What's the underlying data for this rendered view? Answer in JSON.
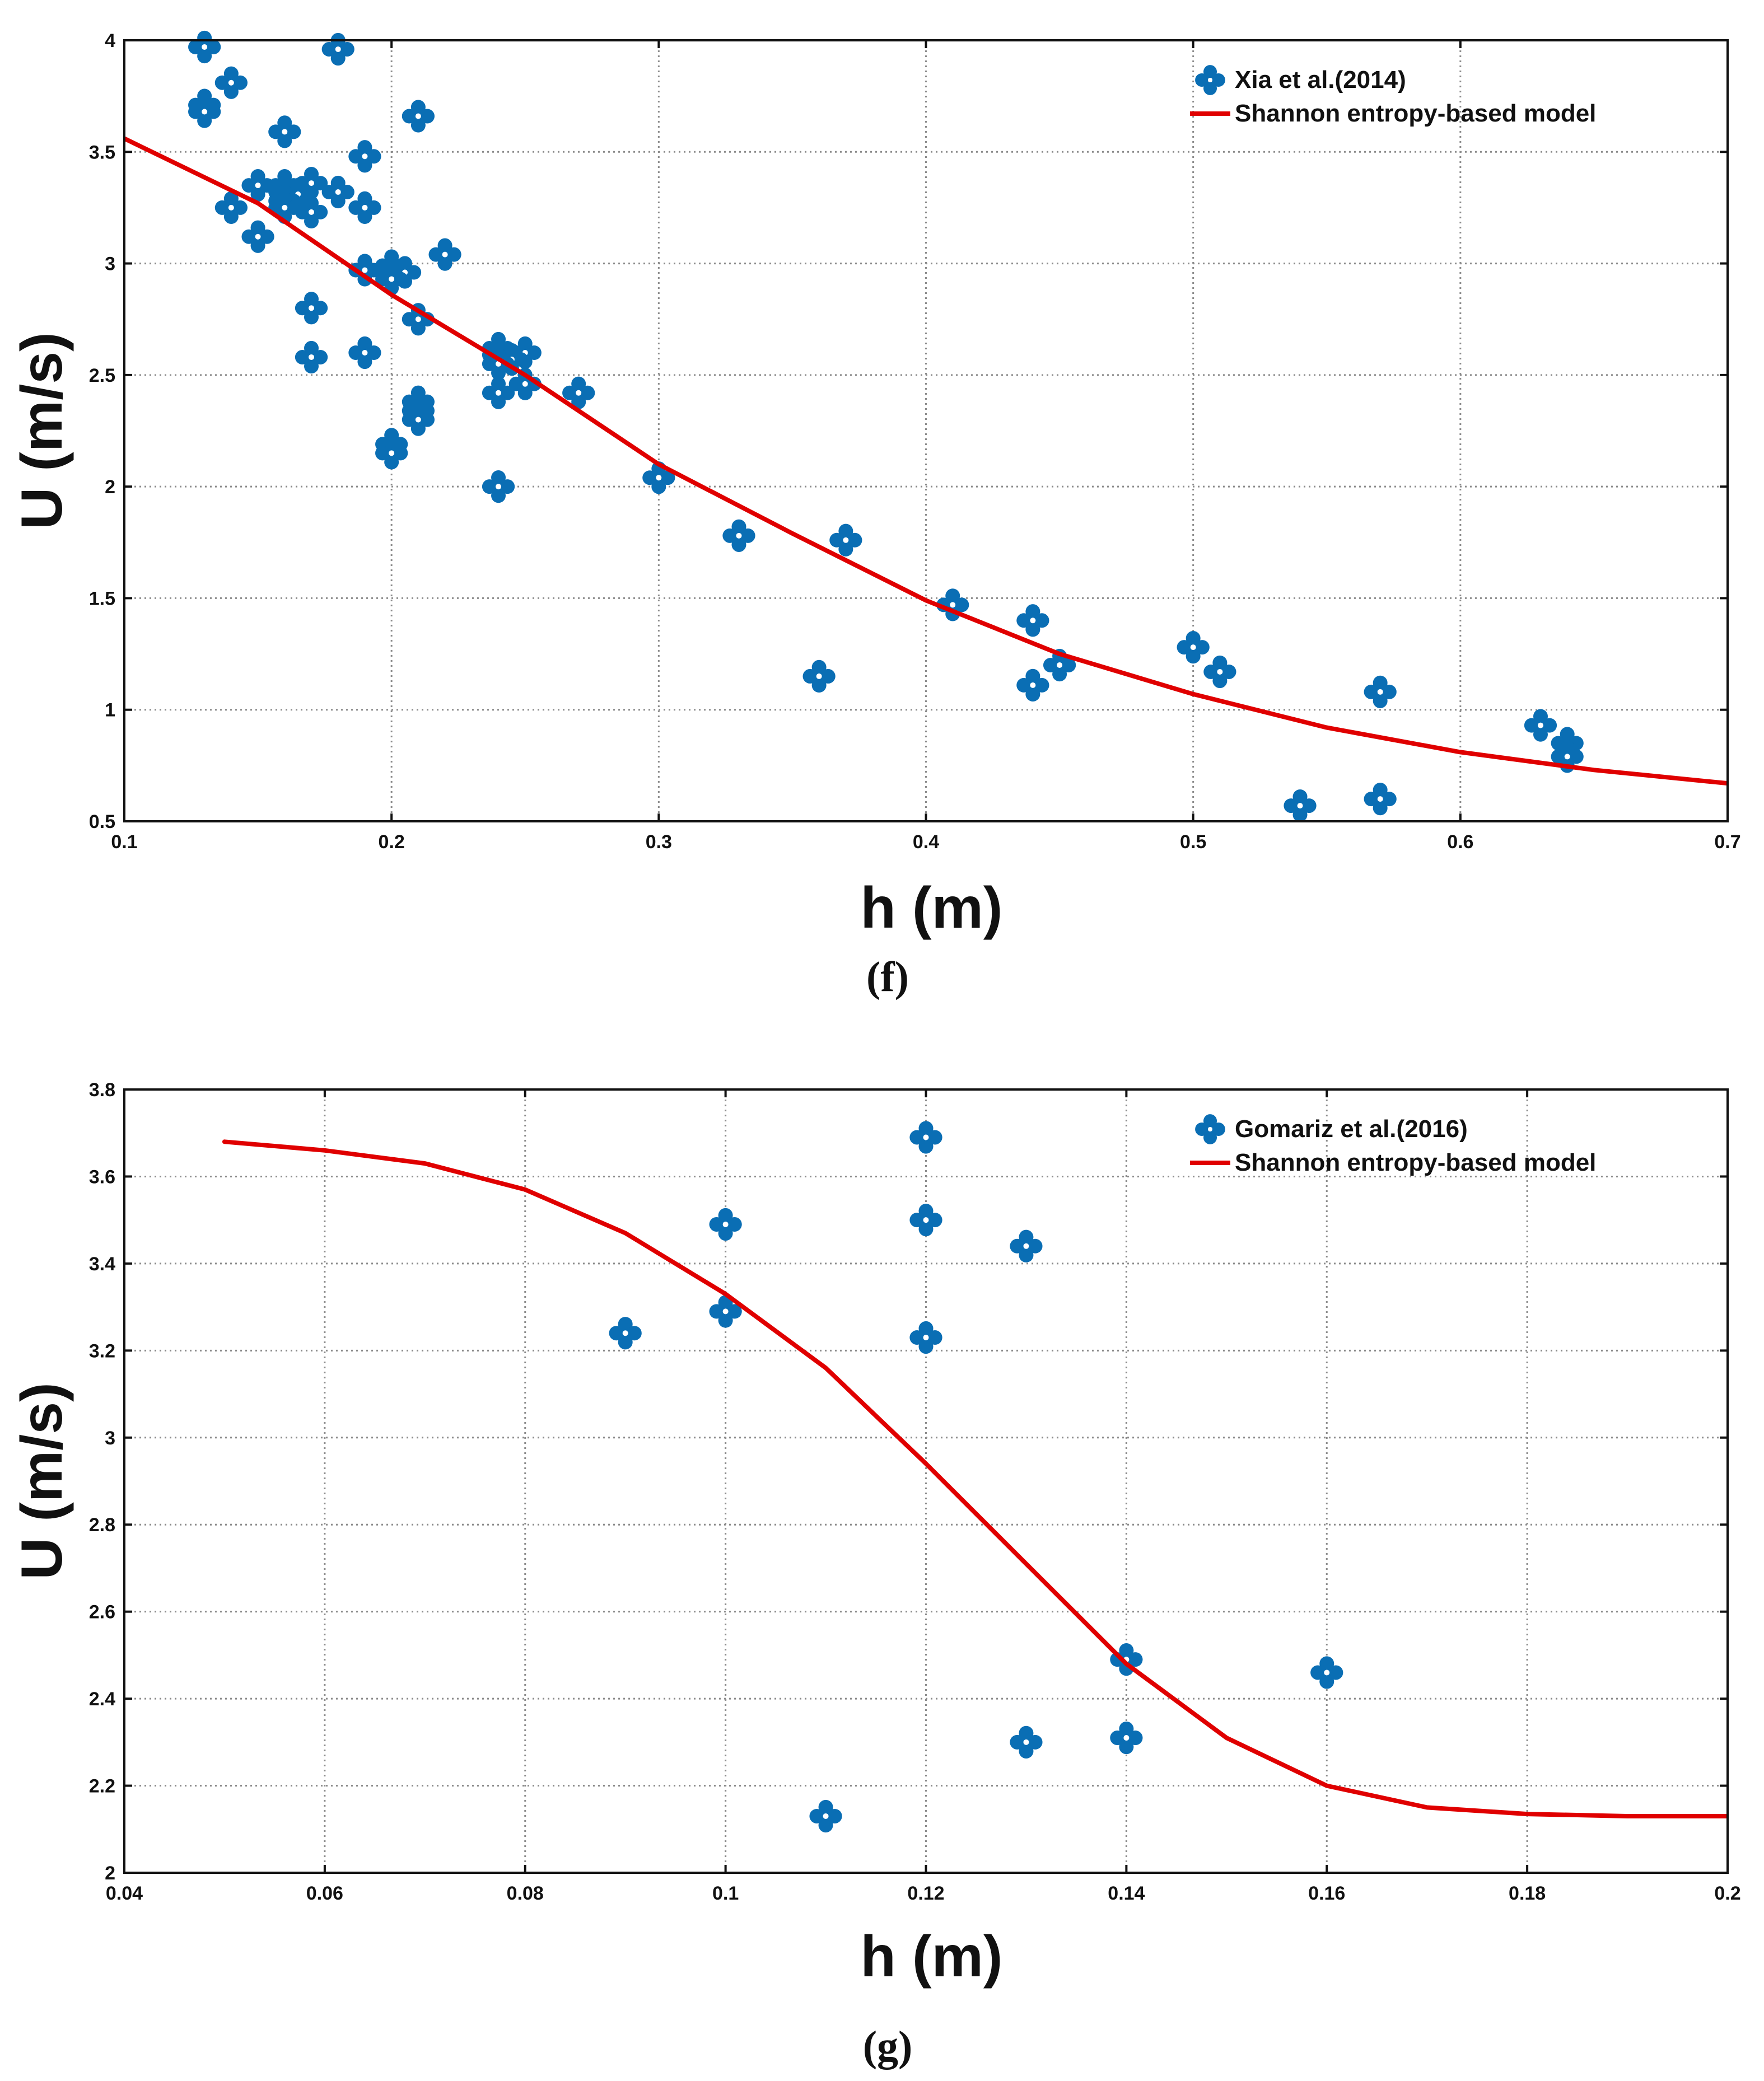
{
  "chart_data": [
    {
      "type": "scatter",
      "panel_label": "(f)",
      "xlabel": "h (m)",
      "ylabel": "U (m/s)",
      "xlim": [
        0.1,
        0.7
      ],
      "ylim": [
        0.5,
        4
      ],
      "xticks": [
        "0.1",
        "0.2",
        "0.3",
        "0.4",
        "0.5",
        "0.6",
        "0.7"
      ],
      "yticks": [
        "0.5",
        "1",
        "1.5",
        "2",
        "2.5",
        "3",
        "3.5",
        "4"
      ],
      "grid": true,
      "legend_position": "top-right",
      "series": [
        {
          "name": "Xia et al.(2014)",
          "kind": "scatter",
          "color": "#0a6eb4",
          "points": [
            [
              0.13,
              3.97
            ],
            [
              0.18,
              3.96
            ],
            [
              0.14,
              3.81
            ],
            [
              0.13,
              3.71
            ],
            [
              0.13,
              3.68
            ],
            [
              0.21,
              3.66
            ],
            [
              0.16,
              3.59
            ],
            [
              0.19,
              3.48
            ],
            [
              0.15,
              3.35
            ],
            [
              0.16,
              3.35
            ],
            [
              0.17,
              3.36
            ],
            [
              0.16,
              3.32
            ],
            [
              0.165,
              3.31
            ],
            [
              0.18,
              3.32
            ],
            [
              0.16,
              3.28
            ],
            [
              0.14,
              3.25
            ],
            [
              0.16,
              3.25
            ],
            [
              0.17,
              3.23
            ],
            [
              0.19,
              3.25
            ],
            [
              0.15,
              3.12
            ],
            [
              0.22,
              3.04
            ],
            [
              0.2,
              2.99
            ],
            [
              0.19,
              2.97
            ],
            [
              0.205,
              2.96
            ],
            [
              0.2,
              2.93
            ],
            [
              0.17,
              2.8
            ],
            [
              0.21,
              2.75
            ],
            [
              0.24,
              2.62
            ],
            [
              0.19,
              2.6
            ],
            [
              0.24,
              2.59
            ],
            [
              0.25,
              2.6
            ],
            [
              0.17,
              2.58
            ],
            [
              0.245,
              2.57
            ],
            [
              0.24,
              2.55
            ],
            [
              0.25,
              2.46
            ],
            [
              0.24,
              2.42
            ],
            [
              0.27,
              2.42
            ],
            [
              0.21,
              2.38
            ],
            [
              0.21,
              2.34
            ],
            [
              0.21,
              2.3
            ],
            [
              0.2,
              2.19
            ],
            [
              0.2,
              2.15
            ],
            [
              0.3,
              2.04
            ],
            [
              0.24,
              2.0
            ],
            [
              0.33,
              1.78
            ],
            [
              0.37,
              1.76
            ],
            [
              0.41,
              1.47
            ],
            [
              0.44,
              1.4
            ],
            [
              0.5,
              1.28
            ],
            [
              0.45,
              1.2
            ],
            [
              0.51,
              1.17
            ],
            [
              0.36,
              1.15
            ],
            [
              0.44,
              1.11
            ],
            [
              0.57,
              1.08
            ],
            [
              0.63,
              0.93
            ],
            [
              0.64,
              0.85
            ],
            [
              0.64,
              0.79
            ],
            [
              0.57,
              0.6
            ],
            [
              0.54,
              0.57
            ]
          ]
        },
        {
          "name": "Shannon entropy-based model",
          "kind": "line",
          "color": "#e00000",
          "points": [
            [
              0.1,
              3.56
            ],
            [
              0.15,
              3.27
            ],
            [
              0.2,
              2.86
            ],
            [
              0.25,
              2.5
            ],
            [
              0.3,
              2.1
            ],
            [
              0.35,
              1.79
            ],
            [
              0.4,
              1.49
            ],
            [
              0.45,
              1.25
            ],
            [
              0.5,
              1.07
            ],
            [
              0.55,
              0.92
            ],
            [
              0.6,
              0.81
            ],
            [
              0.65,
              0.73
            ],
            [
              0.7,
              0.67
            ]
          ]
        }
      ]
    },
    {
      "type": "scatter",
      "panel_label": "(g)",
      "xlabel": "h (m)",
      "ylabel": "U (m/s)",
      "xlim": [
        0.04,
        0.2
      ],
      "ylim": [
        2,
        3.8
      ],
      "xticks": [
        "0.04",
        "0.06",
        "0.08",
        "0.1",
        "0.12",
        "0.14",
        "0.16",
        "0.18",
        "0.2"
      ],
      "yticks": [
        "2",
        "2.2",
        "2.4",
        "2.6",
        "2.8",
        "3",
        "3.2",
        "3.4",
        "3.6",
        "3.8"
      ],
      "grid": true,
      "legend_position": "top-right",
      "series": [
        {
          "name": "Gomariz et al.(2016)",
          "kind": "scatter",
          "color": "#0a6eb4",
          "points": [
            [
              0.12,
              3.69
            ],
            [
              0.1,
              3.49
            ],
            [
              0.12,
              3.5
            ],
            [
              0.13,
              3.44
            ],
            [
              0.1,
              3.29
            ],
            [
              0.09,
              3.24
            ],
            [
              0.12,
              3.23
            ],
            [
              0.14,
              2.49
            ],
            [
              0.16,
              2.46
            ],
            [
              0.14,
              2.31
            ],
            [
              0.13,
              2.3
            ],
            [
              0.11,
              2.13
            ]
          ]
        },
        {
          "name": "Shannon entropy-based model",
          "kind": "line",
          "color": "#e00000",
          "points": [
            [
              0.05,
              3.68
            ],
            [
              0.06,
              3.66
            ],
            [
              0.07,
              3.63
            ],
            [
              0.08,
              3.57
            ],
            [
              0.09,
              3.47
            ],
            [
              0.1,
              3.33
            ],
            [
              0.11,
              3.16
            ],
            [
              0.12,
              2.94
            ],
            [
              0.13,
              2.71
            ],
            [
              0.14,
              2.48
            ],
            [
              0.15,
              2.31
            ],
            [
              0.16,
              2.2
            ],
            [
              0.17,
              2.15
            ],
            [
              0.18,
              2.135
            ],
            [
              0.19,
              2.13
            ],
            [
              0.2,
              2.13
            ]
          ]
        }
      ]
    }
  ]
}
